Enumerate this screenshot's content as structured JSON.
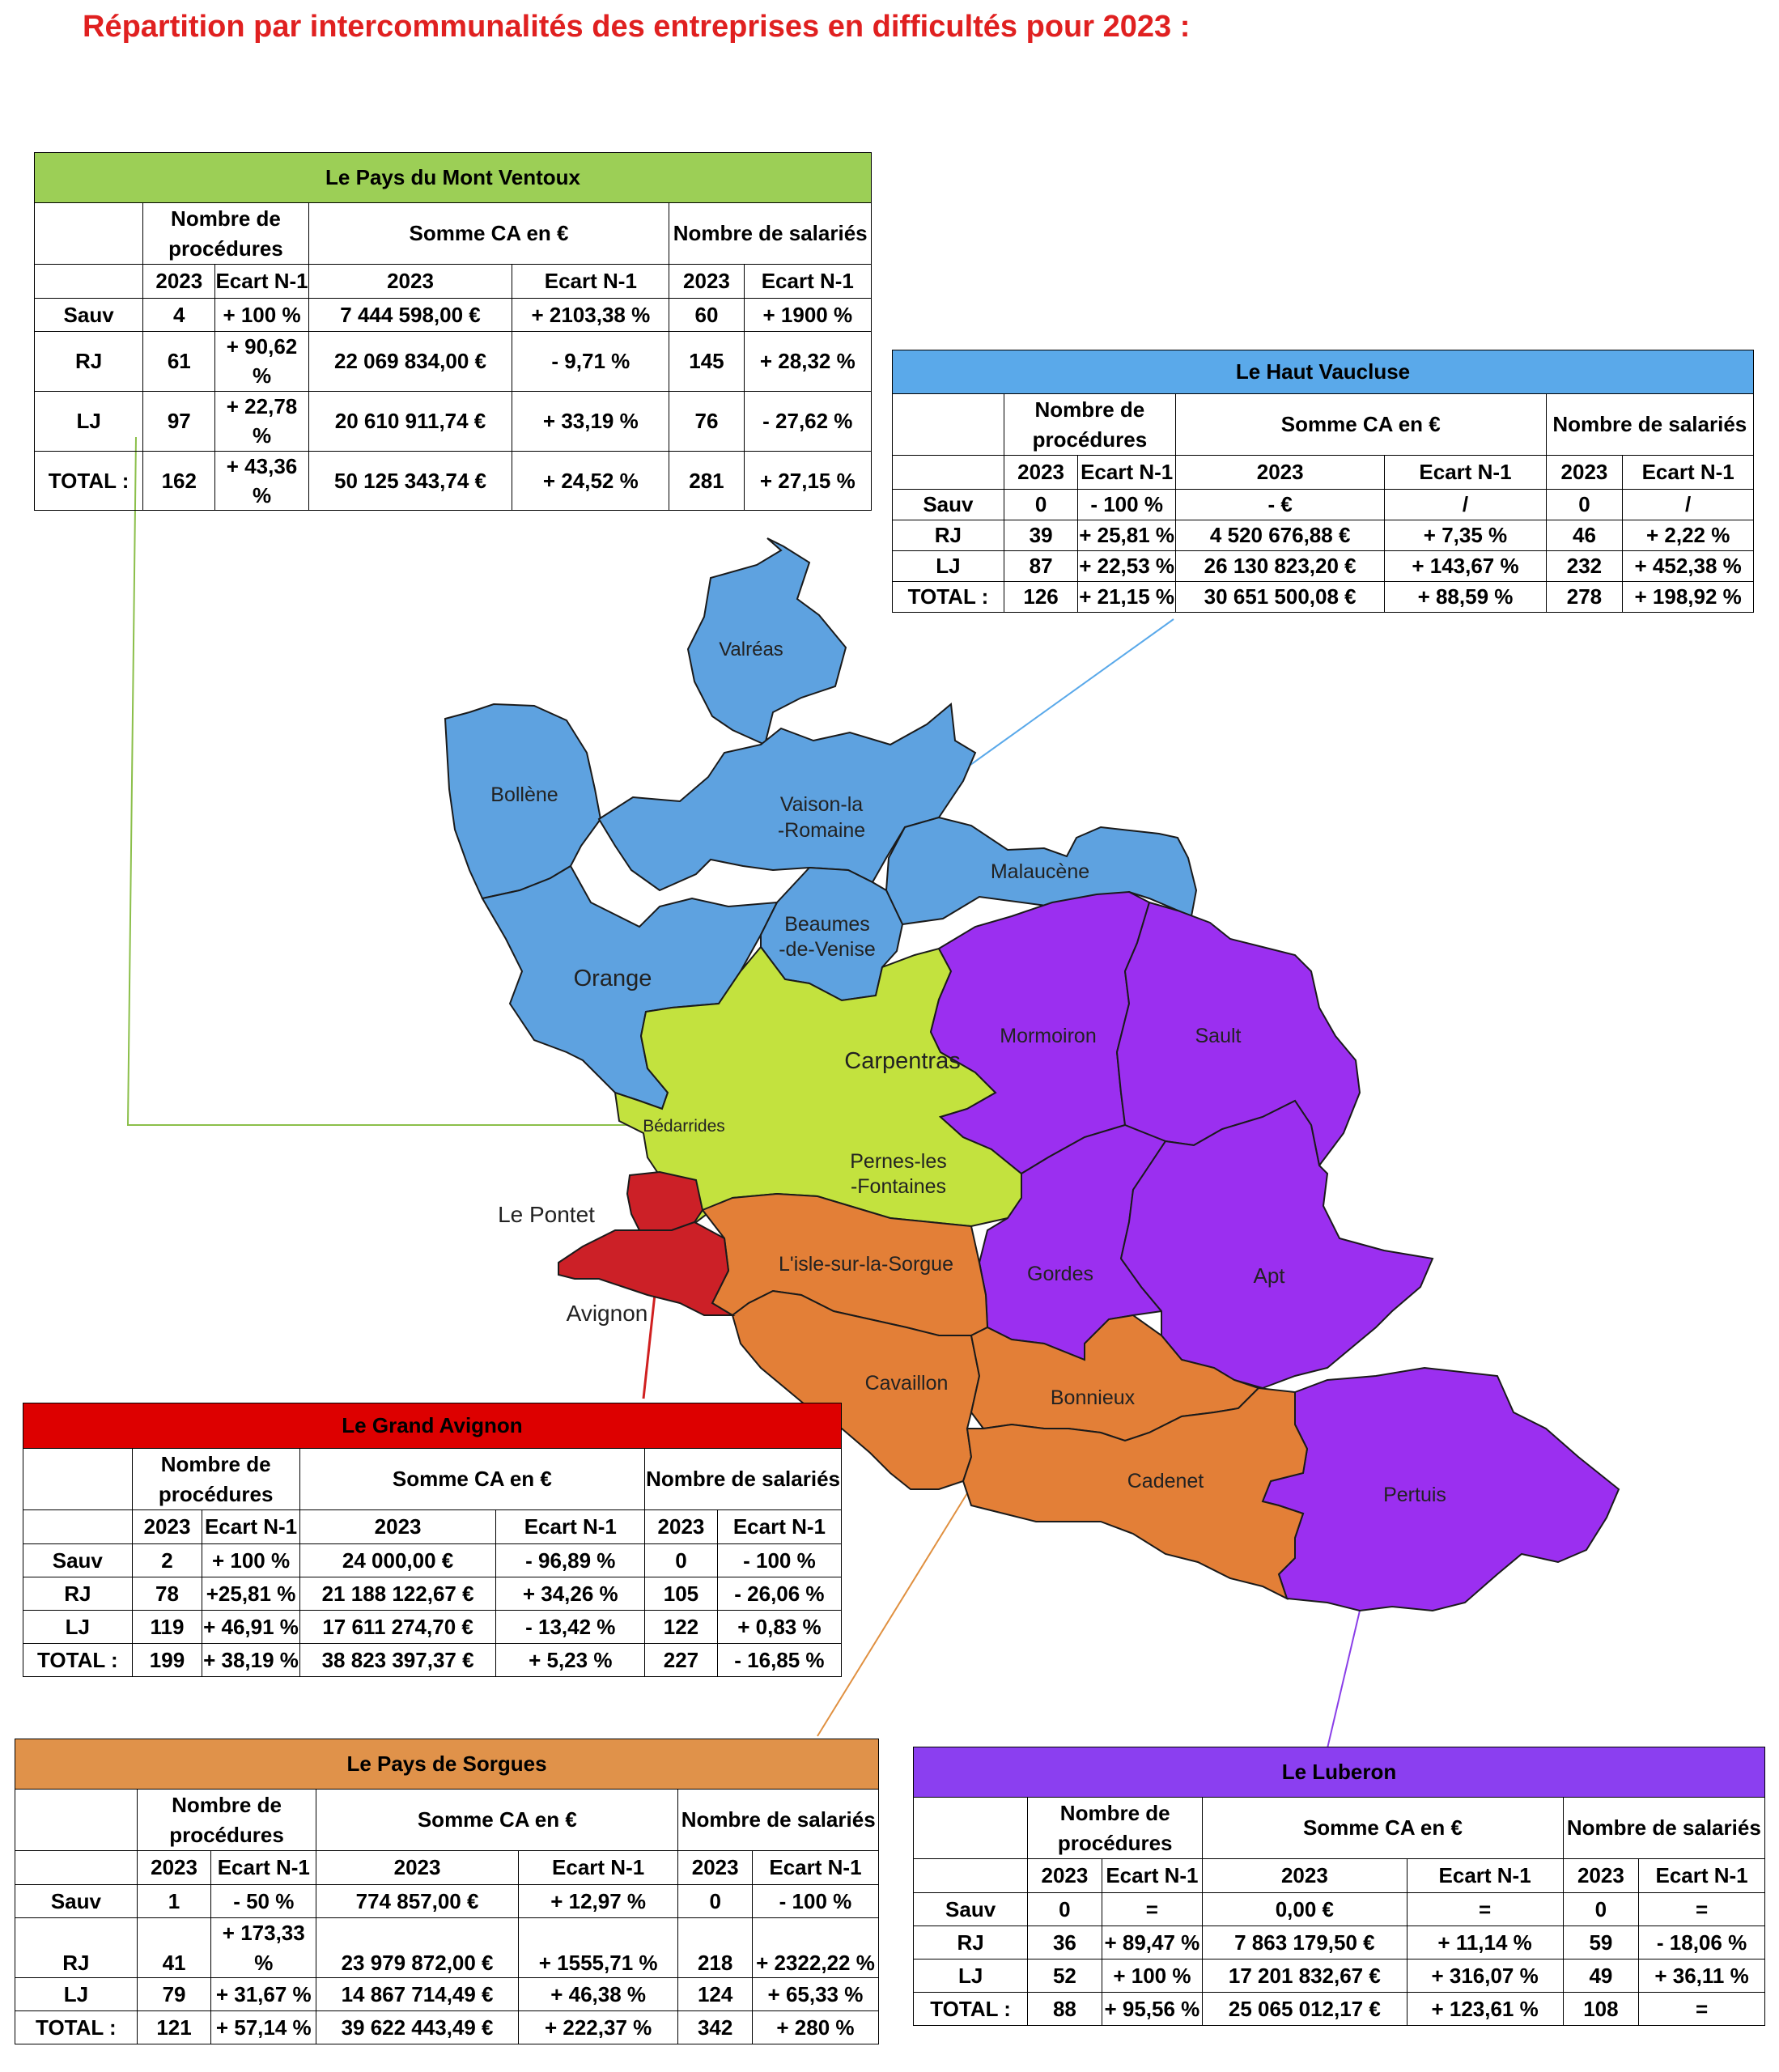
{
  "title": "Répartition par intercommunalités des entreprises en difficultés pour 2023 :",
  "colors": {
    "green": "#c3e23e",
    "blue": "#5ea2e0",
    "red": "#cc2027",
    "orange": "#e37f37",
    "purple": "#9b2ff0"
  },
  "headers": {
    "procedures": "Nombre de procédures",
    "ca": "Somme CA en €",
    "salaries": "Nombre de salariés",
    "year": "2023",
    "ecart": "Ecart N-1"
  },
  "map_labels": {
    "valreas": "Valréas",
    "bollene": "Bollène",
    "vaison": "Vaison-la\n-Romaine",
    "malaucene": "Malaucène",
    "beaumes": "Beaumes\n-de-Venise",
    "orange": "Orange",
    "mormoiron": "Mormoiron",
    "sault": "Sault",
    "carpentras": "Carpentras",
    "bedarrides": "Bédarrides",
    "pernes": "Pernes-les\n-Fontaines",
    "le_pontet": "Le Pontet",
    "avignon": "Avignon",
    "isle": "L'isle-sur-la-Sorgue",
    "gordes": "Gordes",
    "apt": "Apt",
    "cavaillon": "Cavaillon",
    "bonnieux": "Bonnieux",
    "cadenet": "Cadenet",
    "pertuis": "Pertuis"
  },
  "tables": {
    "ventoux": {
      "name": "Le Pays du Mont Ventoux",
      "rows": [
        [
          "Sauv",
          "4",
          "+ 100 %",
          "7 444 598,00 €",
          "+ 2103,38 %",
          "60",
          "+ 1900 %"
        ],
        [
          "RJ",
          "61",
          "+ 90,62 %",
          "22 069 834,00 €",
          "- 9,71 %",
          "145",
          "+ 28,32 %"
        ],
        [
          "LJ",
          "97",
          "+ 22,78 %",
          "20 610 911,74 €",
          "+ 33,19 %",
          "76",
          "- 27,62 %"
        ],
        [
          "TOTAL :",
          "162",
          "+ 43,36 %",
          "50 125 343,74 €",
          "+ 24,52 %",
          "281",
          "+ 27,15 %"
        ]
      ]
    },
    "haut": {
      "name": "Le Haut Vaucluse",
      "rows": [
        [
          "Sauv",
          "0",
          "- 100 %",
          "- €",
          "/",
          "0",
          "/"
        ],
        [
          "RJ",
          "39",
          "+ 25,81 %",
          "4 520 676,88 €",
          "+ 7,35 %",
          "46",
          "+ 2,22 %"
        ],
        [
          "LJ",
          "87",
          "+ 22,53 %",
          "26 130 823,20 €",
          "+ 143,67 %",
          "232",
          "+ 452,38 %"
        ],
        [
          "TOTAL :",
          "126",
          "+ 21,15 %",
          "30 651 500,08 €",
          "+ 88,59 %",
          "278",
          "+ 198,92 %"
        ]
      ]
    },
    "avignon": {
      "name": "Le Grand Avignon",
      "rows": [
        [
          "Sauv",
          "2",
          "+ 100 %",
          "24 000,00 €",
          "- 96,89 %",
          "0",
          "- 100 %"
        ],
        [
          "RJ",
          "78",
          "+25,81 %",
          "21 188 122,67 €",
          "+ 34,26 %",
          "105",
          "- 26,06 %"
        ],
        [
          "LJ",
          "119",
          "+ 46,91 %",
          "17 611 274,70 €",
          "- 13,42 %",
          "122",
          "+ 0,83 %"
        ],
        [
          "TOTAL :",
          "199",
          "+ 38,19 %",
          "38 823 397,37 €",
          "+ 5,23 %",
          "227",
          "- 16,85 %"
        ]
      ]
    },
    "sorgues": {
      "name": "Le Pays de Sorgues",
      "rows": [
        [
          "Sauv",
          "1",
          "- 50 %",
          "774 857,00 €",
          "+ 12,97 %",
          "0",
          "- 100 %"
        ],
        [
          "RJ",
          "41",
          "+ 173,33 %",
          "23 979 872,00 €",
          "+ 1555,71 %",
          "218",
          "+ 2322,22 %"
        ],
        [
          "LJ",
          "79",
          "+ 31,67 %",
          "14 867 714,49 €",
          "+ 46,38 %",
          "124",
          "+ 65,33 %"
        ],
        [
          "TOTAL :",
          "121",
          "+ 57,14 %",
          "39 622 443,49 €",
          "+ 222,37 %",
          "342",
          "+ 280 %"
        ]
      ]
    },
    "luberon": {
      "name": "Le Luberon",
      "rows": [
        [
          "Sauv",
          "0",
          "=",
          "0,00 €",
          "=",
          "0",
          "="
        ],
        [
          "RJ",
          "36",
          "+ 89,47 %",
          "7 863 179,50 €",
          "+ 11,14 %",
          "59",
          "- 18,06 %"
        ],
        [
          "LJ",
          "52",
          "+ 100 %",
          "17 201 832,67 €",
          "+ 316,07 %",
          "49",
          "+ 36,11 %"
        ],
        [
          "TOTAL :",
          "88",
          "+ 95,56 %",
          "25 065 012,17 €",
          "+ 123,61 %",
          "108",
          "="
        ]
      ]
    }
  }
}
